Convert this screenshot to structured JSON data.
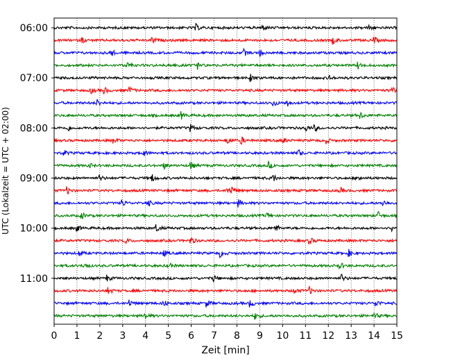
{
  "chart_data": {
    "type": "line",
    "xlabel": "Zeit  [min]",
    "ylabel": "UTC (Lokalzeit = UTC + 02:00)",
    "xlim": [
      0,
      15
    ],
    "x_ticks": [
      0,
      1,
      2,
      3,
      4,
      5,
      6,
      7,
      8,
      9,
      10,
      11,
      12,
      13,
      14,
      15
    ],
    "y_tick_labels": [
      "06:00",
      "07:00",
      "08:00",
      "09:00",
      "10:00",
      "11:00"
    ],
    "grid": "vertical dotted at each minute",
    "trace_colors": [
      "#000000",
      "#ff0000",
      "#0000ff",
      "#008000"
    ],
    "traces_per_hour": 4,
    "minutes_per_trace": 15,
    "series": [
      {
        "start": "06:00",
        "events": [
          6.2,
          9.1,
          13.8
        ]
      },
      {
        "start": "06:15",
        "events": [
          1.2,
          4.3,
          12.2,
          14.0
        ]
      },
      {
        "start": "06:30",
        "events": [
          2.5,
          8.3,
          9.0
        ]
      },
      {
        "start": "06:45",
        "events": [
          3.2,
          5.0,
          6.3,
          13.3
        ]
      },
      {
        "start": "07:00",
        "events": [
          8.6,
          12.0
        ]
      },
      {
        "start": "07:15",
        "events": [
          1.6,
          2.2,
          3.3,
          14.8
        ]
      },
      {
        "start": "07:30",
        "events": [
          1.9,
          9.6,
          10.2
        ]
      },
      {
        "start": "07:45",
        "events": [
          5.6,
          13.4
        ]
      },
      {
        "start": "08:00",
        "events": [
          0.6,
          6.0,
          11.0,
          11.4
        ]
      },
      {
        "start": "08:15",
        "events": [
          2.6,
          7.6,
          8.2,
          10.0,
          11.9
        ]
      },
      {
        "start": "08:30",
        "events": [
          0.4,
          3.9,
          10.7
        ]
      },
      {
        "start": "08:45",
        "events": [
          1.5,
          4.8,
          6.0,
          9.4
        ]
      },
      {
        "start": "09:00",
        "events": [
          2.0,
          4.3,
          9.6,
          13.3
        ]
      },
      {
        "start": "09:15",
        "events": [
          0.6,
          7.6,
          7.8,
          12.5
        ]
      },
      {
        "start": "09:30",
        "events": [
          3.0,
          4.1,
          8.1,
          14.4
        ]
      },
      {
        "start": "09:45",
        "events": [
          1.2,
          9.3,
          14.2
        ]
      },
      {
        "start": "10:00",
        "events": [
          1.0,
          4.5,
          9.7,
          14.8
        ]
      },
      {
        "start": "10:15",
        "events": [
          3.1,
          6.0,
          11.2
        ]
      },
      {
        "start": "10:30",
        "events": [
          1.1,
          4.8,
          7.3,
          12.9
        ]
      },
      {
        "start": "10:45",
        "events": [
          1.3,
          5.0,
          12.5
        ]
      },
      {
        "start": "11:00",
        "events": [
          2.3,
          7.0,
          12.6
        ]
      },
      {
        "start": "11:15",
        "events": [
          2.4,
          10.5,
          11.2
        ]
      },
      {
        "start": "11:30",
        "events": [
          3.3,
          4.8,
          6.7,
          8.6,
          14.1
        ]
      },
      {
        "start": "11:45",
        "events": [
          4.0,
          8.8,
          14.0
        ]
      }
    ]
  }
}
